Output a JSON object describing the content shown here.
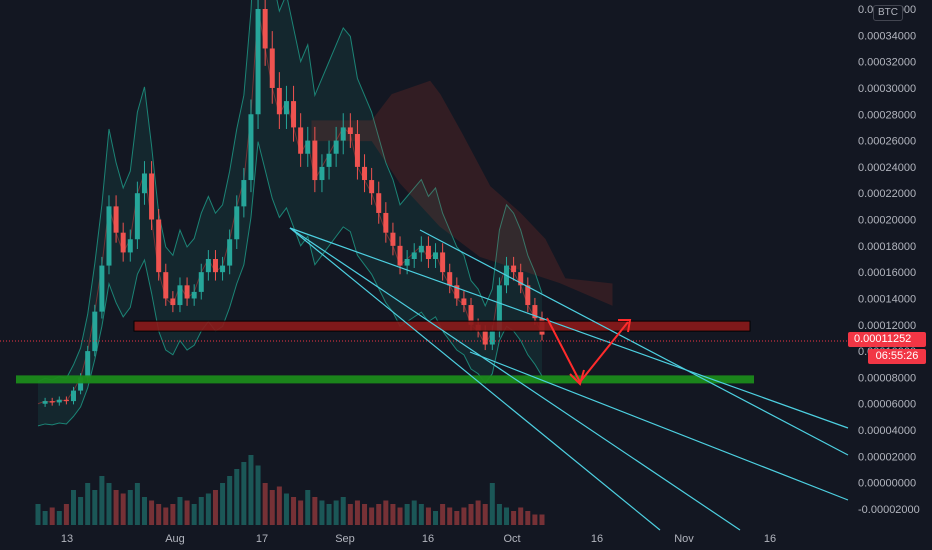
{
  "header": {
    "currency": "BTC"
  },
  "price": {
    "current": "0.00011252",
    "countdown": "06:55:26"
  },
  "colors": {
    "background": "#131722",
    "up": "#26a69a",
    "down": "#ef5350",
    "support_zone": "#1b8a1b",
    "resistance_zone": "#8b1a1a",
    "trendline": "#4dd0e1",
    "arrow": "#ff2b2b",
    "bollinger": "#1e9e8a",
    "cloud_red": "#c0392b",
    "axis_text": "#b2b5be"
  },
  "icons": [
    "arrow-down-icon",
    "arrow-up-icon"
  ],
  "chart_data": {
    "type": "candlestick",
    "title": "",
    "y_axis": {
      "min": -2e-05,
      "max": 0.00036,
      "ticks": [
        "0.00036000",
        "0.00034000",
        "0.00032000",
        "0.00030000",
        "0.00028000",
        "0.00026000",
        "0.00024000",
        "0.00022000",
        "0.00020000",
        "0.00018000",
        "0.00016000",
        "0.00014000",
        "0.00012000",
        "0.00010000",
        "0.00008000",
        "0.00006000",
        "0.00004000",
        "0.00002000",
        "0.00000000",
        "-0.00002000"
      ]
    },
    "x_axis": {
      "ticks": [
        "13",
        "Aug",
        "17",
        "Sep",
        "16",
        "Oct",
        "16",
        "Nov",
        "16"
      ]
    },
    "price_series": [
      6e-05,
      6.2e-05,
      6.1e-05,
      6.3e-05,
      6.2e-05,
      7e-05,
      8e-05,
      0.0001,
      0.00013,
      0.000165,
      0.00021,
      0.00019,
      0.000175,
      0.000185,
      0.00022,
      0.000235,
      0.0002,
      0.00016,
      0.00014,
      0.000135,
      0.00015,
      0.00014,
      0.000145,
      0.00016,
      0.00017,
      0.00016,
      0.000165,
      0.000185,
      0.00021,
      0.00023,
      0.00028,
      0.00036,
      0.00033,
      0.0003,
      0.00028,
      0.00029,
      0.00027,
      0.00025,
      0.00026,
      0.00023,
      0.00024,
      0.00025,
      0.00026,
      0.00027,
      0.000265,
      0.00024,
      0.00023,
      0.00022,
      0.000205,
      0.00019,
      0.00018,
      0.000165,
      0.00017,
      0.000175,
      0.00018,
      0.00017,
      0.000175,
      0.00016,
      0.00015,
      0.00014,
      0.000135,
      0.00012,
      0.000115,
      0.000105,
      0.000115,
      0.00015,
      0.000165,
      0.00016,
      0.00015,
      0.000135,
      0.000125,
      0.00011252
    ],
    "volume": [
      0.3,
      0.2,
      0.25,
      0.2,
      0.3,
      0.5,
      0.4,
      0.6,
      0.5,
      0.7,
      0.6,
      0.5,
      0.45,
      0.5,
      0.6,
      0.4,
      0.35,
      0.3,
      0.25,
      0.3,
      0.4,
      0.35,
      0.3,
      0.4,
      0.45,
      0.5,
      0.6,
      0.7,
      0.8,
      0.9,
      1.0,
      0.85,
      0.6,
      0.5,
      0.55,
      0.45,
      0.4,
      0.35,
      0.5,
      0.4,
      0.35,
      0.3,
      0.35,
      0.4,
      0.3,
      0.35,
      0.3,
      0.25,
      0.3,
      0.35,
      0.3,
      0.25,
      0.3,
      0.35,
      0.3,
      0.25,
      0.2,
      0.3,
      0.25,
      0.2,
      0.25,
      0.3,
      0.35,
      0.3,
      0.6,
      0.3,
      0.25,
      0.2,
      0.25,
      0.2,
      0.15,
      0.15
    ],
    "horizontal_zones": [
      {
        "name": "resistance",
        "value": 0.000119,
        "color": "#8b1a1a"
      },
      {
        "name": "support",
        "value": 7.85e-05,
        "color": "#1b8a1b"
      }
    ],
    "legend": "none",
    "grid": false
  }
}
